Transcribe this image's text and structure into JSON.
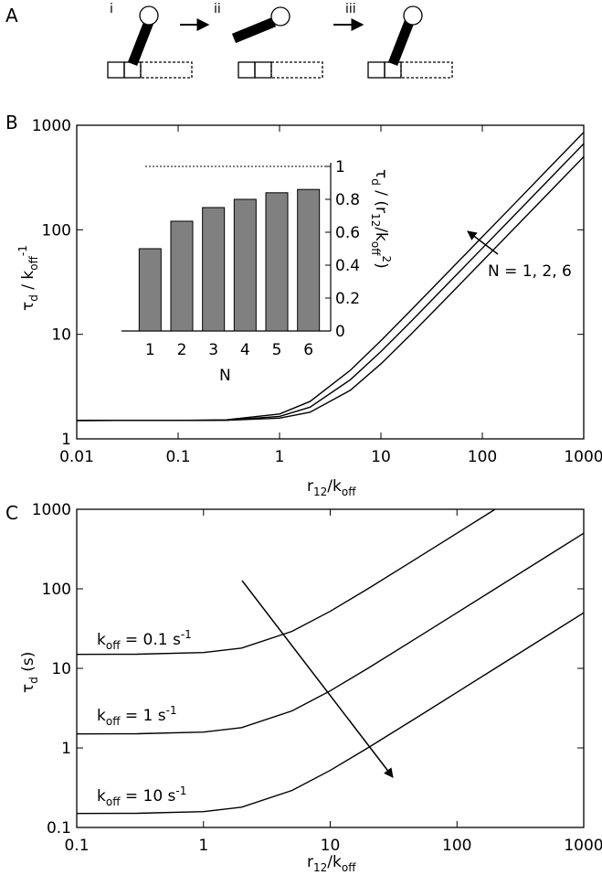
{
  "panel_labels": [
    "A",
    "B",
    "C"
  ],
  "panel_a": {
    "steps": [
      "i",
      "ii",
      "iii"
    ]
  },
  "chart_data": [
    {
      "type": "line",
      "log_x": true,
      "log_y": true,
      "xlabel": [
        "r",
        "12",
        "/k",
        "off"
      ],
      "ylabel": [
        "τ",
        "d",
        " / k",
        "off",
        "-1"
      ],
      "annotation": "N = 1, 2, 6",
      "x": [
        0.01,
        0.1,
        0.3,
        1,
        2,
        5,
        10,
        20,
        50,
        100,
        200,
        500,
        1000
      ],
      "xlim": [
        0.01,
        1000
      ],
      "xticks": [
        0.01,
        0.1,
        1,
        10,
        100,
        1000
      ],
      "ylim": [
        1,
        1000
      ],
      "yticks": [
        1,
        10,
        100,
        1000
      ],
      "series": [
        {
          "color": "#000000",
          "values": [
            1.5,
            1.501,
            1.507,
            1.58,
            1.8,
            2.92,
            5.22,
            10.1,
            25.04,
            50.02,
            100.01,
            250,
            500
          ]
        },
        {
          "color": "#000000",
          "values": [
            1.5,
            1.501,
            1.513,
            1.64,
            2.01,
            3.68,
            6.84,
            13.4,
            33.4,
            66.7,
            133,
            333,
            667
          ]
        },
        {
          "color": "#000000",
          "values": [
            1.5,
            1.502,
            1.522,
            1.73,
            2.28,
            4.54,
            8.7,
            17.2,
            42.9,
            85.7,
            171,
            429,
            857
          ]
        }
      ]
    },
    {
      "type": "bar",
      "xlabel": [
        "N"
      ],
      "ylabel": [
        "τ",
        "d",
        " / (r",
        "12",
        "/k",
        "off",
        "2",
        ")"
      ],
      "categories": [
        "1",
        "2",
        "3",
        "4",
        "5",
        "6"
      ],
      "values": [
        0.5,
        0.667,
        0.75,
        0.8,
        0.84,
        0.86
      ],
      "color": "#808080",
      "reference_line": 1,
      "ylim": [
        0,
        1
      ],
      "yticks": [
        0,
        0.2,
        0.4,
        0.6,
        0.8,
        1
      ]
    },
    {
      "type": "line",
      "log_x": true,
      "log_y": true,
      "xlabel": [
        "r",
        "12",
        "/k",
        "off"
      ],
      "ylabel": [
        "τ",
        "d",
        " (s)"
      ],
      "x": [
        0.1,
        0.3,
        1,
        2,
        5,
        10,
        20,
        50,
        100,
        200,
        500,
        1000
      ],
      "xlim": [
        0.1,
        1000
      ],
      "xticks": [
        0.1,
        1,
        10,
        100,
        1000
      ],
      "ylim": [
        0.1,
        1000
      ],
      "yticks": [
        0.1,
        1,
        10,
        100,
        1000
      ],
      "series": [
        {
          "color": "#000000",
          "label": [
            "k",
            "off",
            " = 0.1 s",
            "-1"
          ],
          "values": [
            15.01,
            15.07,
            15.8,
            18.0,
            29.2,
            52.2,
            101,
            250.4,
            500.2,
            1000,
            null,
            null
          ]
        },
        {
          "color": "#000000",
          "label": [
            "k",
            "off",
            " = 1 s",
            "-1"
          ],
          "values": [
            1.501,
            1.507,
            1.58,
            1.8,
            2.92,
            5.22,
            10.1,
            25.04,
            50.02,
            100.01,
            250,
            500
          ]
        },
        {
          "color": "#000000",
          "label": [
            "k",
            "off",
            " = 10 s",
            "-1"
          ],
          "values": [
            0.1501,
            0.1507,
            0.158,
            0.18,
            0.292,
            0.522,
            1.01,
            2.5,
            5.0,
            10.0,
            25.0,
            50.0
          ]
        }
      ]
    }
  ]
}
